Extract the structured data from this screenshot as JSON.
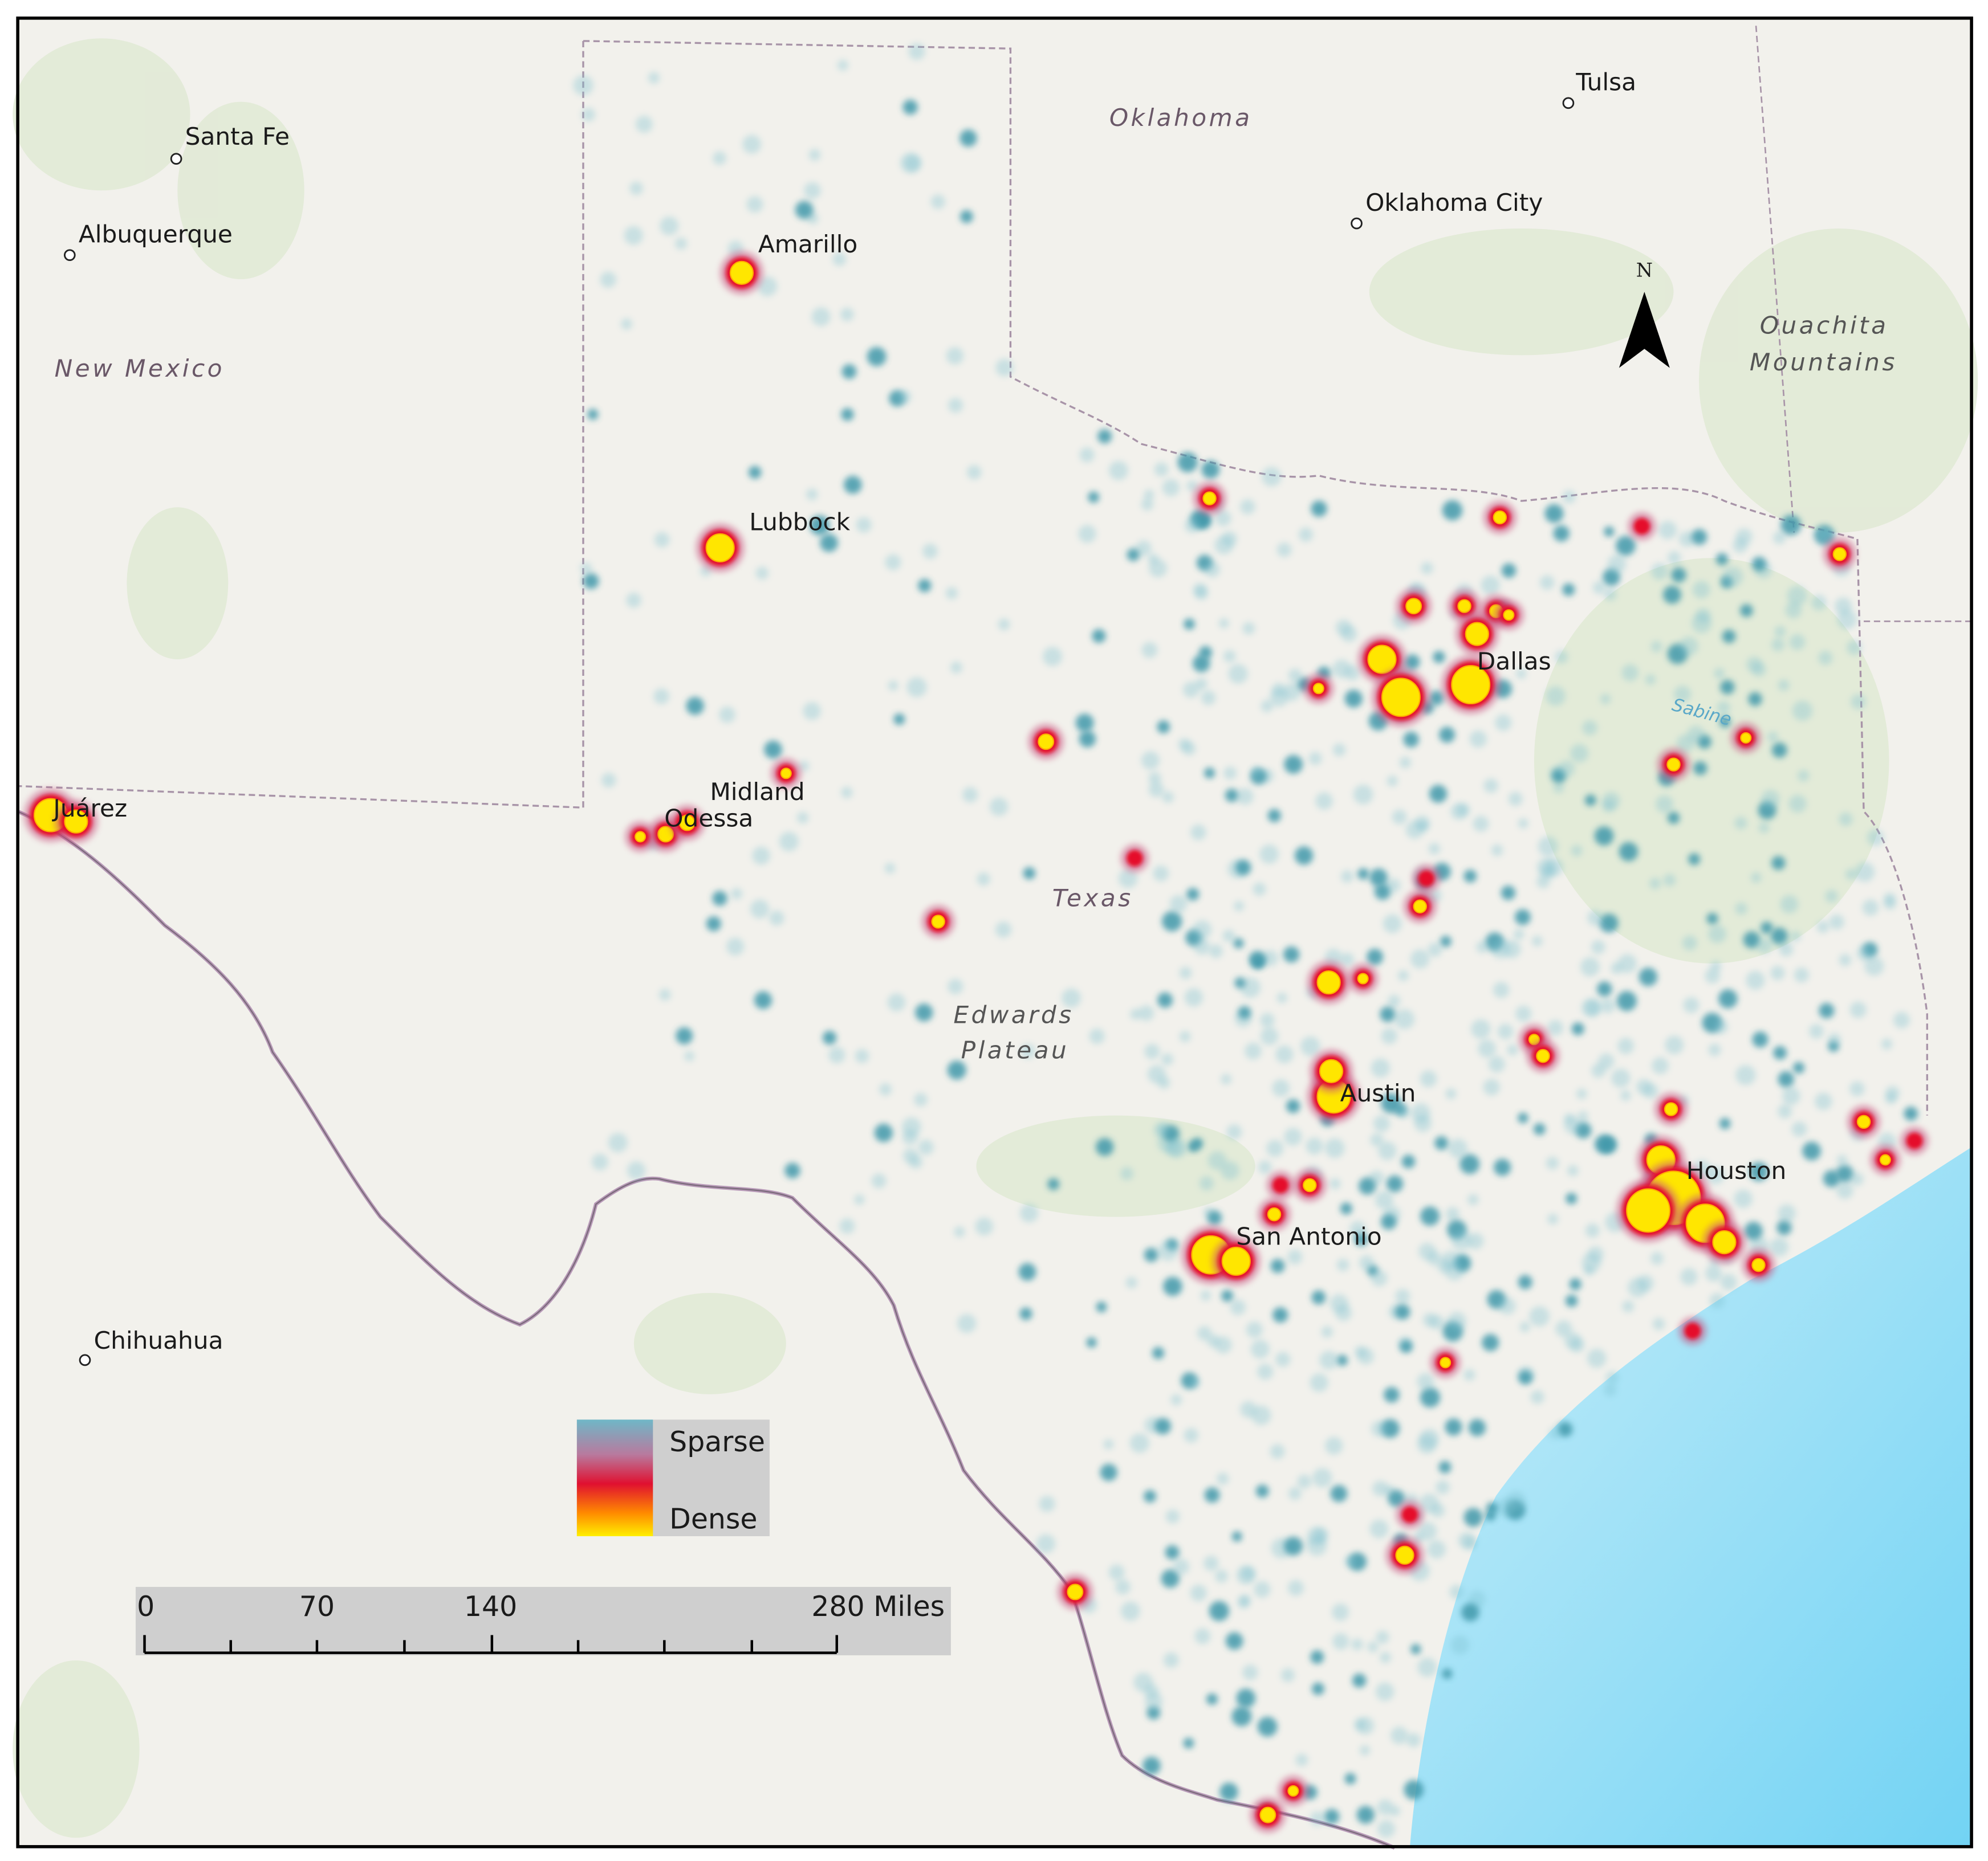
{
  "map": {
    "places": [
      "Santa Fe",
      "Albuquerque",
      "Amarillo",
      "Tulsa",
      "Oklahoma City",
      "Lubbock",
      "Midland",
      "Odessa",
      "Juárez",
      "Dallas",
      "Austin",
      "San Antonio",
      "Houston",
      "Chihuahua"
    ],
    "regions": [
      "New Mexico",
      "Oklahoma",
      "Texas",
      "Edwards",
      "Plateau",
      "Ouachita",
      "Mountains"
    ],
    "river": "Sabine",
    "north_arrow": "N",
    "legend": {
      "sparse": "Sparse",
      "dense": "Dense"
    },
    "scale_bar": [
      "0",
      "70",
      "140",
      "280 Miles"
    ]
  }
}
